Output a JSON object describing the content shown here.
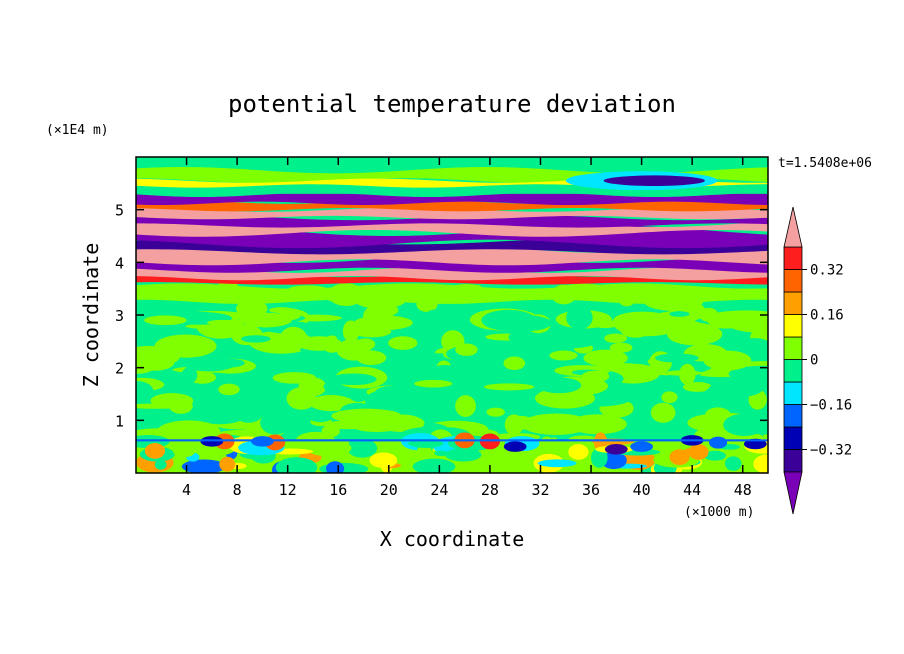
{
  "chart_data": {
    "type": "heatmap",
    "title": "potential temperature deviation",
    "xlabel": "X coordinate",
    "ylabel": "Z coordinate",
    "x_unit": "(×1000 m)",
    "y_unit": "(×1E4 m)",
    "time_label": "t=1.5408e+06",
    "xlim": [
      0,
      50
    ],
    "ylim": [
      0,
      6
    ],
    "x_ticks": [
      4,
      8,
      12,
      16,
      20,
      24,
      28,
      32,
      36,
      40,
      44,
      48
    ],
    "y_ticks": [
      1,
      2,
      3,
      4,
      5
    ],
    "colorbar": {
      "levels": [
        -0.48,
        -0.4,
        -0.32,
        -0.24,
        -0.16,
        -0.08,
        0,
        0.08,
        0.16,
        0.24,
        0.32,
        0.4
      ],
      "tick_labels": [
        "0.32",
        "0.16",
        "0",
        "−0.16",
        "−0.32"
      ],
      "tick_values": [
        0.32,
        0.16,
        0,
        -0.16,
        -0.32
      ],
      "colors": [
        "#7a00b8",
        "#3a0097",
        "#0000b4",
        "#0064ff",
        "#00e6ff",
        "#00f08c",
        "#80ff00",
        "#ffff00",
        "#ffa000",
        "#ff6400",
        "#ff1e1e",
        "#f5a0a0"
      ]
    },
    "layers": [
      {
        "z": [
          0.0,
          0.55
        ],
        "description": "mixed near-surface anomalies"
      },
      {
        "z": [
          0.55,
          3.6
        ],
        "description": "near-zero deviation"
      },
      {
        "z": [
          3.6,
          5.3
        ],
        "description": "strong alternating positive/negative bands"
      },
      {
        "z": [
          5.3,
          6.0
        ],
        "description": "weak anomalies with negative cell"
      }
    ]
  }
}
